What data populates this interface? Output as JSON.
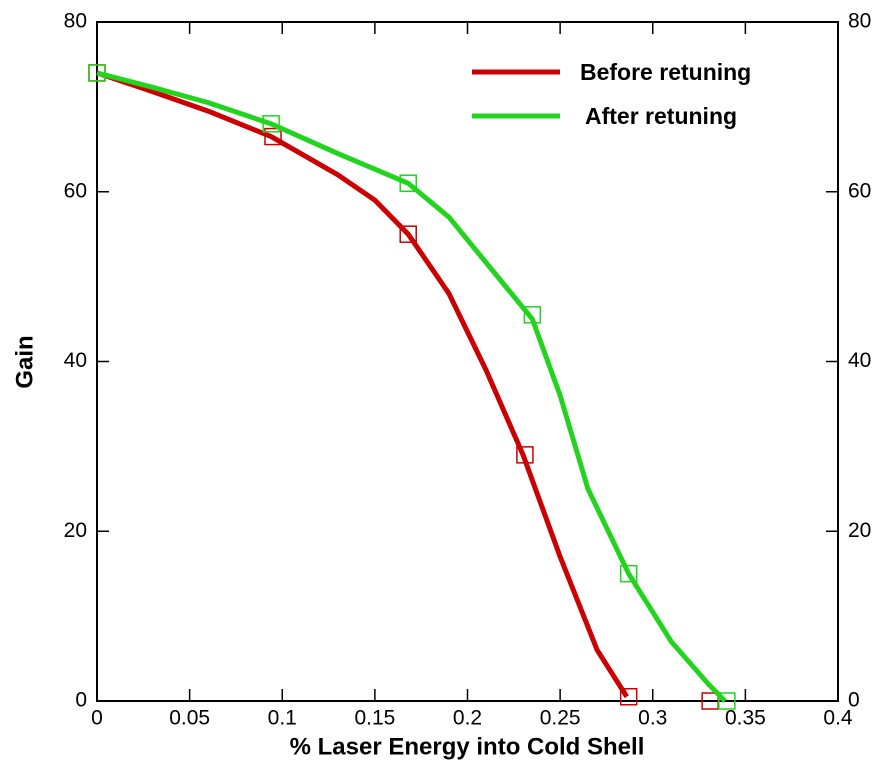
{
  "chart_data": {
    "type": "line",
    "xlabel": "% Laser Energy into Cold Shell",
    "ylabel": "Gain",
    "xlim": [
      0,
      0.4
    ],
    "ylim": [
      0,
      80
    ],
    "y2lim": [
      0,
      80
    ],
    "xticks": [
      0,
      0.05,
      0.1,
      0.15,
      0.2,
      0.25,
      0.3,
      0.35,
      0.4
    ],
    "yticks": [
      0,
      20,
      40,
      60,
      80
    ],
    "y2ticks": [
      0,
      20,
      40,
      60,
      80
    ],
    "legend": "upper right",
    "series": [
      {
        "name": "Before retuning",
        "color": "#cc0000",
        "x": [
          0,
          0.03,
          0.06,
          0.094,
          0.13,
          0.15,
          0.168,
          0.19,
          0.21,
          0.23,
          0.25,
          0.27,
          0.286
        ],
        "values": [
          74,
          71.8,
          69.5,
          66.5,
          62,
          59,
          55,
          48,
          39,
          29,
          17,
          6,
          0.5
        ],
        "markers": {
          "x": [
            0,
            0.095,
            0.168,
            0.231,
            0.287,
            0.331
          ],
          "values": [
            74,
            66.5,
            55,
            29,
            0.5,
            0
          ]
        }
      },
      {
        "name": "After retuning",
        "color": "#22d41e",
        "x": [
          0,
          0.03,
          0.06,
          0.094,
          0.13,
          0.168,
          0.19,
          0.205,
          0.22,
          0.235,
          0.25,
          0.265,
          0.287,
          0.31,
          0.33,
          0.339
        ],
        "values": [
          74,
          72.3,
          70.5,
          68,
          64.5,
          61,
          57,
          53,
          49,
          45,
          36,
          25,
          15,
          7,
          2,
          0
        ],
        "markers": {
          "x": [
            0,
            0.094,
            0.168,
            0.235,
            0.287,
            0.34
          ],
          "values": [
            74,
            68,
            61,
            45.5,
            15,
            0
          ]
        }
      }
    ]
  }
}
